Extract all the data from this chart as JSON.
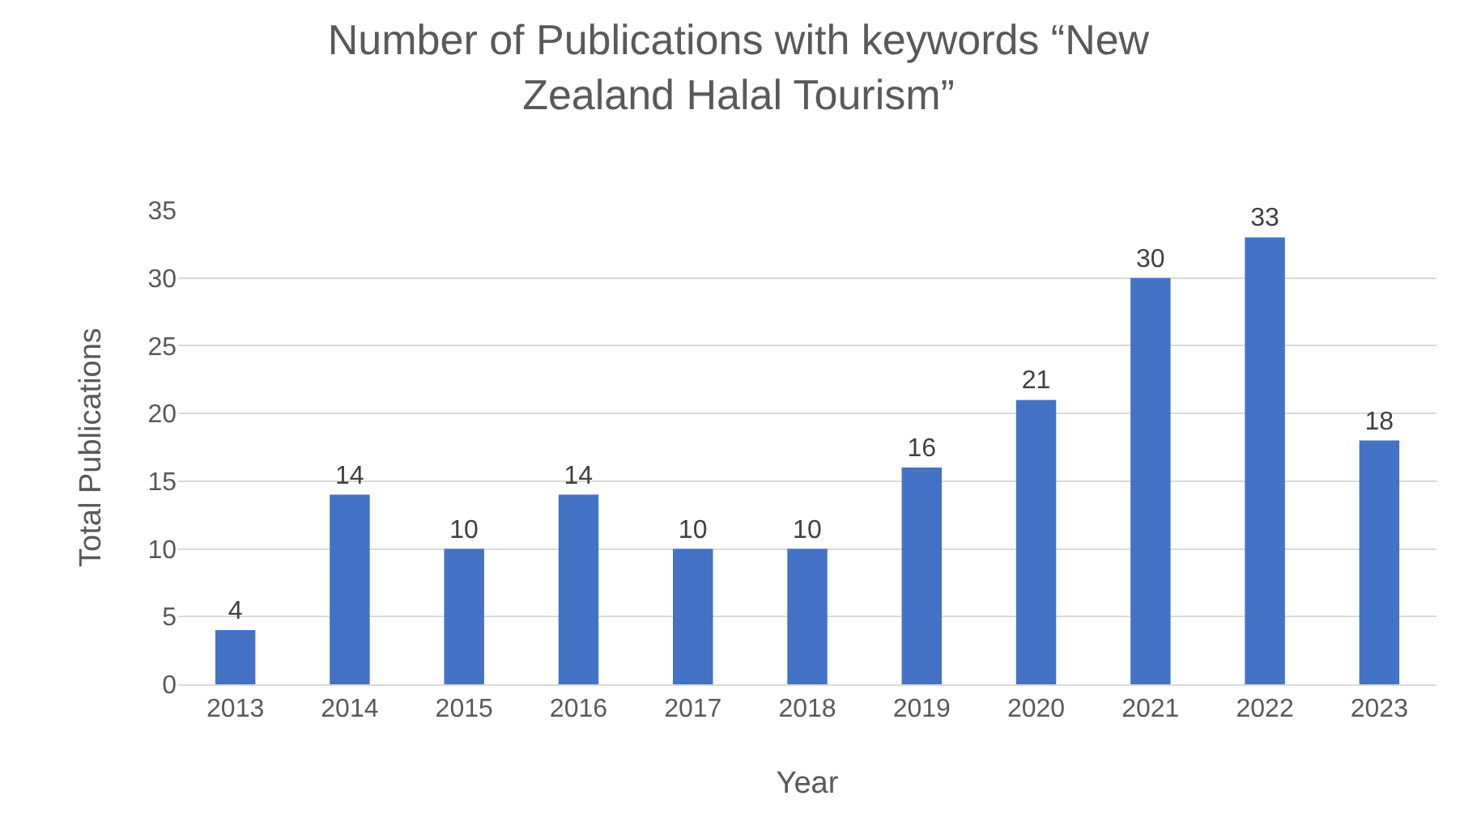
{
  "chart_data": {
    "type": "bar",
    "title": "Number of Publications with keywords “New Zealand Halal Tourism”",
    "xlabel": "Year",
    "ylabel": "Total Publications",
    "categories": [
      "2013",
      "2014",
      "2015",
      "2016",
      "2017",
      "2018",
      "2019",
      "2020",
      "2021",
      "2022",
      "2023"
    ],
    "values": [
      4,
      14,
      10,
      14,
      10,
      10,
      16,
      21,
      30,
      33,
      18
    ],
    "color": "#4472c4",
    "ylim": [
      0,
      35
    ],
    "yticks": [
      0,
      5,
      10,
      15,
      20,
      25,
      30,
      35
    ],
    "grid": "y",
    "data_labels": true,
    "legend": false
  }
}
